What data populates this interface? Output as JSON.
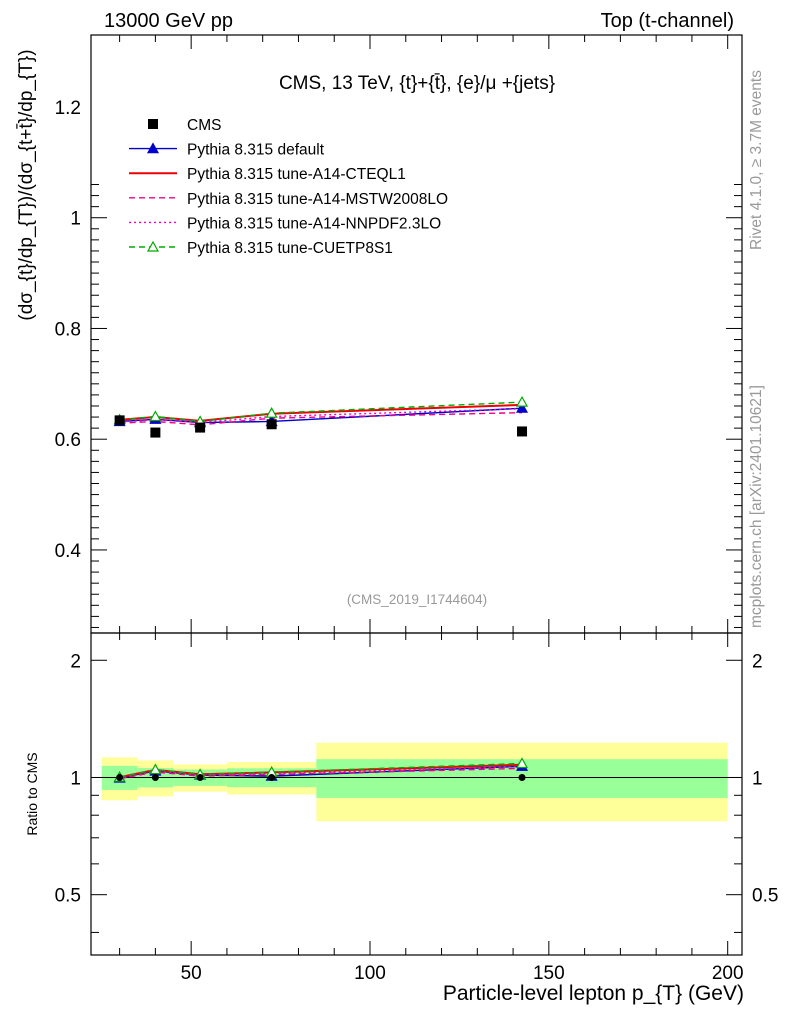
{
  "header": {
    "left": "13000 GeV pp",
    "right": "Top (t-channel)"
  },
  "side_labels": {
    "rivet": "Rivet 4.1.0, ≥ 3.7M events",
    "mcplots": "mcplots.cern.ch [arXiv:2401.10621]"
  },
  "chart_data": {
    "type": "line",
    "title": "CMS, 13 TeV, {t}+{t̄}, {e}/μ +{jets}",
    "analysis_id": "(CMS_2019_I1744604)",
    "xlabel": "Particle-level lepton p_{T} (GeV)",
    "ylabel": "(dσ_{t}/dp_{T})/(dσ_{t+t̄}/dp_{T})",
    "ratio_ylabel": "Ratio to CMS",
    "xlim": [
      22,
      204
    ],
    "ylim": [
      0.25,
      1.33
    ],
    "ratio_ylim": [
      0.35,
      2.35
    ],
    "x_ticks": [
      50,
      100,
      150,
      200
    ],
    "y_ticks": [
      0.4,
      0.6,
      0.8,
      1,
      1.2
    ],
    "y_tick_labels": [
      "0.4",
      "0.6",
      "0.8",
      "1",
      "1.2"
    ],
    "ratio_ticks": [
      0.5,
      1,
      2
    ],
    "ratio_tick_labels": [
      "0.5",
      "1",
      "2"
    ],
    "x_tick_labels": [
      "50",
      "100",
      "150",
      "200"
    ],
    "bins": [
      [
        25,
        35
      ],
      [
        35,
        45
      ],
      [
        45,
        60
      ],
      [
        60,
        85
      ],
      [
        85,
        200
      ]
    ],
    "x": [
      30,
      40,
      52.5,
      72.5,
      142.5
    ],
    "data": {
      "name": "CMS",
      "values": [
        0.634,
        0.612,
        0.621,
        0.627,
        0.614
      ],
      "band_inner": [
        0.045,
        0.035,
        0.03,
        0.035,
        0.07
      ],
      "band_outer": [
        0.08,
        0.065,
        0.05,
        0.06,
        0.14
      ]
    },
    "series": [
      {
        "name": "Pythia 8.315 default",
        "color": "#0000cc",
        "dash": "solid",
        "marker": "triangle-filled",
        "values": [
          0.632,
          0.636,
          0.63,
          0.632,
          0.656
        ]
      },
      {
        "name": "Pythia 8.315 tune-A14-CTEQL1",
        "color": "#ee0000",
        "dash": "solid",
        "marker": "none",
        "values": [
          0.635,
          0.64,
          0.633,
          0.646,
          0.662
        ]
      },
      {
        "name": "Pythia 8.315 tune-A14-MSTW2008LO",
        "color": "#ee0088",
        "dash": "dashed",
        "marker": "none",
        "values": [
          0.629,
          0.632,
          0.626,
          0.638,
          0.648
        ]
      },
      {
        "name": "Pythia 8.315 tune-A14-NNPDF2.3LO",
        "color": "#ee00cc",
        "dash": "dotted",
        "marker": "none",
        "values": [
          0.631,
          0.635,
          0.63,
          0.641,
          0.655
        ]
      },
      {
        "name": "Pythia 8.315 tune-CUETP8S1",
        "color": "#00aa00",
        "dash": "dashed",
        "marker": "triangle-open",
        "values": [
          0.635,
          0.641,
          0.632,
          0.647,
          0.667
        ]
      }
    ]
  }
}
